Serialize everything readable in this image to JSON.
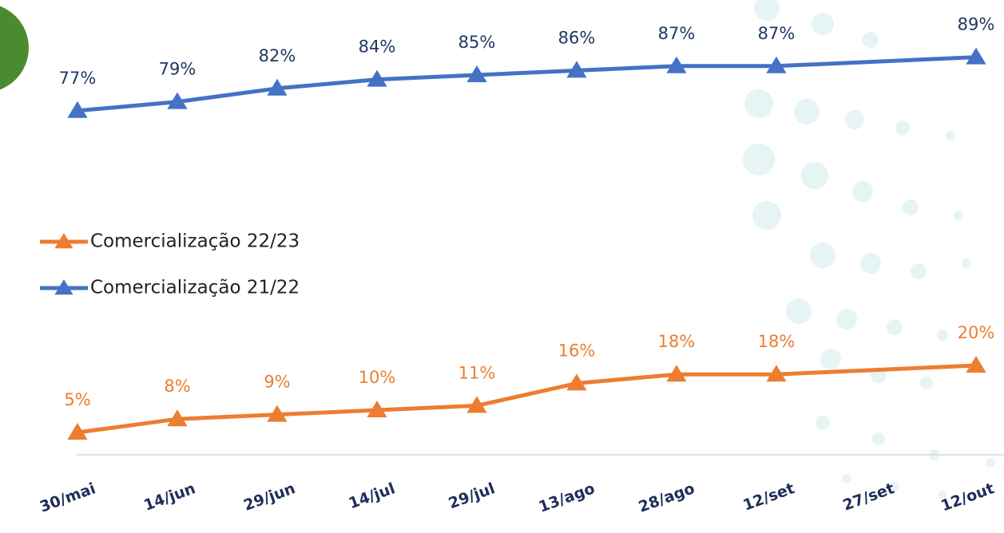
{
  "chart_data": {
    "type": "line",
    "categories": [
      "30/mai",
      "14/jun",
      "29/jun",
      "14/jul",
      "29/jul",
      "13/ago",
      "28/ago",
      "12/set",
      "27/set",
      "12/out"
    ],
    "series": [
      {
        "name": "Comercialização 22/23",
        "color": "#ed7d31",
        "label_color": "#ed7d31",
        "values": [
          5,
          8,
          9,
          10,
          11,
          16,
          18,
          18,
          null,
          20
        ],
        "value_labels": [
          "5%",
          "8%",
          "9%",
          "10%",
          "11%",
          "16%",
          "18%",
          "18%",
          null,
          "20%"
        ]
      },
      {
        "name": "Comercialização 21/22",
        "color": "#4472c4",
        "label_color": "#1f3864",
        "values": [
          77,
          79,
          82,
          84,
          85,
          86,
          87,
          87,
          null,
          89
        ],
        "value_labels": [
          "77%",
          "79%",
          "82%",
          "84%",
          "85%",
          "86%",
          "87%",
          "87%",
          null,
          "89%"
        ]
      }
    ],
    "ylim": [
      0,
      100
    ],
    "span_gaps": true,
    "legend": "left",
    "grid": false
  }
}
